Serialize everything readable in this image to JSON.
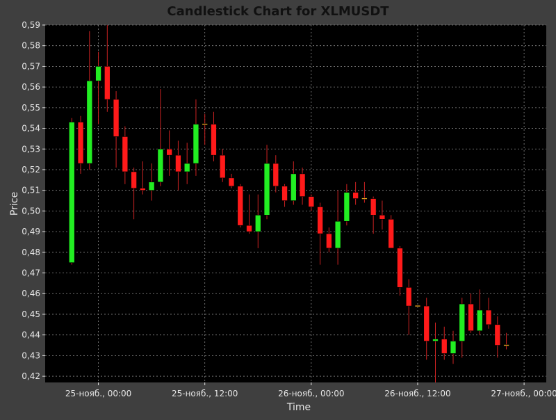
{
  "colors": {
    "background": "#3f3f3f",
    "plot_background": "#000000",
    "grid": "#8a8a8a",
    "text": "#e6e6e6",
    "title": "#111111",
    "up": "#22ee22",
    "down": "#ff1a1a",
    "wick": "#cc2222"
  },
  "chart_data": {
    "type": "candlestick",
    "title": "Candlestick Chart for XLMUSDT",
    "xlabel": "Time",
    "ylabel": "Price",
    "ylim": [
      0.417,
      0.59
    ],
    "xlim_hours": [
      -6.0,
      50.5
    ],
    "y_ticks": [
      "0,42",
      "0,43",
      "0,44",
      "0,45",
      "0,46",
      "0,47",
      "0,48",
      "0,49",
      "0,50",
      "0,51",
      "0,52",
      "0,53",
      "0,54",
      "0,55",
      "0,56",
      "0,57",
      "0,58",
      "0,59"
    ],
    "y_tick_values": [
      0.42,
      0.43,
      0.44,
      0.45,
      0.46,
      0.47,
      0.48,
      0.49,
      0.5,
      0.51,
      0.52,
      0.53,
      0.54,
      0.55,
      0.56,
      0.57,
      0.58,
      0.59
    ],
    "x_ticks": [
      "25-нояб., 00:00",
      "25-нояб., 12:00",
      "26-нояб., 00:00",
      "26-нояб., 12:00",
      "27-нояб., 00:00"
    ],
    "x_tick_hours": [
      0,
      12,
      24,
      36,
      48
    ],
    "grid": true,
    "candles": [
      {
        "t": -3,
        "o": 0.475,
        "h": 0.545,
        "l": 0.474,
        "c": 0.543
      },
      {
        "t": -2,
        "o": 0.543,
        "h": 0.546,
        "l": 0.518,
        "c": 0.523
      },
      {
        "t": -1,
        "o": 0.523,
        "h": 0.587,
        "l": 0.52,
        "c": 0.563
      },
      {
        "t": 0,
        "o": 0.563,
        "h": 0.577,
        "l": 0.542,
        "c": 0.57
      },
      {
        "t": 1,
        "o": 0.57,
        "h": 0.59,
        "l": 0.548,
        "c": 0.554
      },
      {
        "t": 2,
        "o": 0.554,
        "h": 0.558,
        "l": 0.521,
        "c": 0.536
      },
      {
        "t": 3,
        "o": 0.536,
        "h": 0.541,
        "l": 0.513,
        "c": 0.519
      },
      {
        "t": 4,
        "o": 0.519,
        "h": 0.521,
        "l": 0.496,
        "c": 0.511
      },
      {
        "t": 5,
        "o": 0.511,
        "h": 0.524,
        "l": 0.508,
        "c": 0.51
      },
      {
        "t": 6,
        "o": 0.51,
        "h": 0.523,
        "l": 0.505,
        "c": 0.514
      },
      {
        "t": 7,
        "o": 0.514,
        "h": 0.559,
        "l": 0.512,
        "c": 0.53
      },
      {
        "t": 8,
        "o": 0.53,
        "h": 0.539,
        "l": 0.517,
        "c": 0.527
      },
      {
        "t": 9,
        "o": 0.527,
        "h": 0.534,
        "l": 0.51,
        "c": 0.519
      },
      {
        "t": 10,
        "o": 0.519,
        "h": 0.533,
        "l": 0.513,
        "c": 0.523
      },
      {
        "t": 11,
        "o": 0.523,
        "h": 0.554,
        "l": 0.517,
        "c": 0.542
      },
      {
        "t": 12,
        "o": 0.542,
        "h": 0.547,
        "l": 0.532,
        "c": 0.542
      },
      {
        "t": 13,
        "o": 0.542,
        "h": 0.548,
        "l": 0.524,
        "c": 0.527
      },
      {
        "t": 14,
        "o": 0.527,
        "h": 0.53,
        "l": 0.514,
        "c": 0.516
      },
      {
        "t": 15,
        "o": 0.516,
        "h": 0.518,
        "l": 0.511,
        "c": 0.512
      },
      {
        "t": 16,
        "o": 0.512,
        "h": 0.513,
        "l": 0.492,
        "c": 0.493
      },
      {
        "t": 17,
        "o": 0.493,
        "h": 0.508,
        "l": 0.489,
        "c": 0.49
      },
      {
        "t": 18,
        "o": 0.49,
        "h": 0.508,
        "l": 0.482,
        "c": 0.498
      },
      {
        "t": 19,
        "o": 0.498,
        "h": 0.532,
        "l": 0.496,
        "c": 0.523
      },
      {
        "t": 20,
        "o": 0.523,
        "h": 0.527,
        "l": 0.509,
        "c": 0.512
      },
      {
        "t": 21,
        "o": 0.512,
        "h": 0.513,
        "l": 0.502,
        "c": 0.505
      },
      {
        "t": 22,
        "o": 0.505,
        "h": 0.524,
        "l": 0.503,
        "c": 0.518
      },
      {
        "t": 23,
        "o": 0.518,
        "h": 0.521,
        "l": 0.503,
        "c": 0.507
      },
      {
        "t": 24,
        "o": 0.507,
        "h": 0.508,
        "l": 0.5,
        "c": 0.502
      },
      {
        "t": 25,
        "o": 0.502,
        "h": 0.504,
        "l": 0.474,
        "c": 0.489
      },
      {
        "t": 26,
        "o": 0.489,
        "h": 0.492,
        "l": 0.48,
        "c": 0.482
      },
      {
        "t": 27,
        "o": 0.482,
        "h": 0.51,
        "l": 0.474,
        "c": 0.495
      },
      {
        "t": 28,
        "o": 0.495,
        "h": 0.513,
        "l": 0.493,
        "c": 0.509
      },
      {
        "t": 29,
        "o": 0.509,
        "h": 0.514,
        "l": 0.503,
        "c": 0.506
      },
      {
        "t": 30,
        "o": 0.506,
        "h": 0.514,
        "l": 0.504,
        "c": 0.506
      },
      {
        "t": 31,
        "o": 0.506,
        "h": 0.507,
        "l": 0.489,
        "c": 0.498
      },
      {
        "t": 32,
        "o": 0.498,
        "h": 0.505,
        "l": 0.491,
        "c": 0.496
      },
      {
        "t": 33,
        "o": 0.496,
        "h": 0.498,
        "l": 0.483,
        "c": 0.482
      },
      {
        "t": 34,
        "o": 0.482,
        "h": 0.483,
        "l": 0.459,
        "c": 0.463
      },
      {
        "t": 35,
        "o": 0.463,
        "h": 0.467,
        "l": 0.44,
        "c": 0.454
      },
      {
        "t": 36,
        "o": 0.454,
        "h": 0.454,
        "l": 0.454,
        "c": 0.454
      },
      {
        "t": 37,
        "o": 0.454,
        "h": 0.458,
        "l": 0.428,
        "c": 0.437
      },
      {
        "t": 38,
        "o": 0.437,
        "h": 0.446,
        "l": 0.417,
        "c": 0.438
      },
      {
        "t": 39,
        "o": 0.438,
        "h": 0.444,
        "l": 0.428,
        "c": 0.431
      },
      {
        "t": 40,
        "o": 0.431,
        "h": 0.442,
        "l": 0.426,
        "c": 0.437
      },
      {
        "t": 41,
        "o": 0.437,
        "h": 0.458,
        "l": 0.429,
        "c": 0.455
      },
      {
        "t": 42,
        "o": 0.455,
        "h": 0.46,
        "l": 0.441,
        "c": 0.442
      },
      {
        "t": 43,
        "o": 0.442,
        "h": 0.462,
        "l": 0.44,
        "c": 0.452
      },
      {
        "t": 44,
        "o": 0.452,
        "h": 0.458,
        "l": 0.443,
        "c": 0.445
      },
      {
        "t": 45,
        "o": 0.445,
        "h": 0.449,
        "l": 0.429,
        "c": 0.435
      },
      {
        "t": 46,
        "o": 0.435,
        "h": 0.441,
        "l": 0.433,
        "c": 0.435
      }
    ]
  }
}
